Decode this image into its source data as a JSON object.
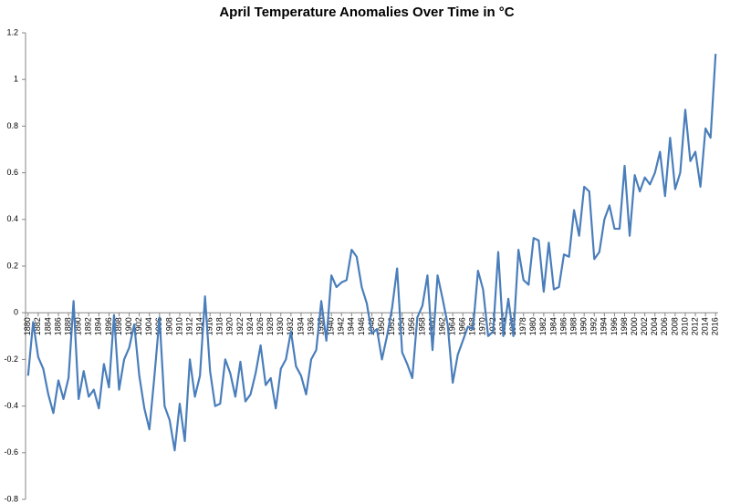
{
  "chart_data": {
    "type": "line",
    "title": "April Temperature Anomalies Over Time in °C",
    "x": [
      1880,
      1881,
      1882,
      1883,
      1884,
      1885,
      1886,
      1887,
      1888,
      1889,
      1890,
      1891,
      1892,
      1893,
      1894,
      1895,
      1896,
      1897,
      1898,
      1899,
      1900,
      1901,
      1902,
      1903,
      1904,
      1905,
      1906,
      1907,
      1908,
      1909,
      1910,
      1911,
      1912,
      1913,
      1914,
      1915,
      1916,
      1917,
      1918,
      1919,
      1920,
      1921,
      1922,
      1923,
      1924,
      1925,
      1926,
      1927,
      1928,
      1929,
      1930,
      1931,
      1932,
      1933,
      1934,
      1935,
      1936,
      1937,
      1938,
      1939,
      1940,
      1941,
      1942,
      1943,
      1944,
      1945,
      1946,
      1947,
      1948,
      1949,
      1950,
      1951,
      1952,
      1953,
      1954,
      1955,
      1956,
      1957,
      1958,
      1959,
      1960,
      1961,
      1962,
      1963,
      1964,
      1965,
      1966,
      1967,
      1968,
      1969,
      1970,
      1971,
      1972,
      1973,
      1974,
      1975,
      1976,
      1977,
      1978,
      1979,
      1980,
      1981,
      1982,
      1983,
      1984,
      1985,
      1986,
      1987,
      1988,
      1989,
      1990,
      1991,
      1992,
      1993,
      1994,
      1995,
      1996,
      1997,
      1998,
      1999,
      2000,
      2001,
      2002,
      2003,
      2004,
      2005,
      2006,
      2007,
      2008,
      2009,
      2010,
      2011,
      2012,
      2013,
      2014,
      2015,
      2016
    ],
    "values": [
      -0.27,
      -0.04,
      -0.19,
      -0.24,
      -0.35,
      -0.43,
      -0.29,
      -0.37,
      -0.28,
      0.05,
      -0.37,
      -0.25,
      -0.36,
      -0.33,
      -0.41,
      -0.22,
      -0.32,
      -0.01,
      -0.33,
      -0.2,
      -0.15,
      -0.05,
      -0.27,
      -0.41,
      -0.5,
      -0.27,
      -0.02,
      -0.4,
      -0.46,
      -0.59,
      -0.39,
      -0.55,
      -0.2,
      -0.36,
      -0.27,
      0.07,
      -0.25,
      -0.4,
      -0.39,
      -0.2,
      -0.26,
      -0.36,
      -0.21,
      -0.38,
      -0.35,
      -0.26,
      -0.14,
      -0.31,
      -0.28,
      -0.41,
      -0.24,
      -0.2,
      -0.08,
      -0.23,
      -0.27,
      -0.35,
      -0.2,
      -0.16,
      0.05,
      -0.12,
      0.16,
      0.11,
      0.13,
      0.14,
      0.27,
      0.24,
      0.11,
      0.04,
      -0.09,
      -0.07,
      -0.2,
      -0.1,
      0.02,
      0.19,
      -0.17,
      -0.22,
      -0.28,
      -0.02,
      0.03,
      0.16,
      -0.16,
      0.16,
      0.06,
      -0.05,
      -0.3,
      -0.18,
      -0.12,
      -0.06,
      -0.07,
      0.18,
      0.1,
      -0.1,
      -0.08,
      0.26,
      -0.1,
      0.06,
      -0.1,
      0.27,
      0.14,
      0.12,
      0.32,
      0.31,
      0.09,
      0.3,
      0.1,
      0.11,
      0.25,
      0.24,
      0.44,
      0.33,
      0.54,
      0.52,
      0.23,
      0.26,
      0.4,
      0.46,
      0.36,
      0.36,
      0.63,
      0.33,
      0.59,
      0.52,
      0.58,
      0.55,
      0.6,
      0.69,
      0.5,
      0.75,
      0.53,
      0.6,
      0.87,
      0.65,
      0.69,
      0.54,
      0.79,
      0.75,
      1.11
    ],
    "color": "#4a7ebb",
    "xlim": [
      1879.5,
      2016.5
    ],
    "xticks": [
      1880,
      1882,
      1884,
      1886,
      1888,
      1890,
      1892,
      1894,
      1896,
      1898,
      1900,
      1902,
      1904,
      1906,
      1908,
      1910,
      1912,
      1914,
      1916,
      1918,
      1920,
      1922,
      1924,
      1926,
      1928,
      1930,
      1932,
      1934,
      1936,
      1938,
      1940,
      1942,
      1944,
      1946,
      1948,
      1950,
      1952,
      1954,
      1956,
      1958,
      1960,
      1962,
      1964,
      1966,
      1968,
      1970,
      1972,
      1974,
      1976,
      1978,
      1980,
      1982,
      1984,
      1986,
      1988,
      1990,
      1992,
      1994,
      1996,
      1998,
      2000,
      2002,
      2004,
      2006,
      2008,
      2010,
      2012,
      2014,
      2016
    ],
    "ylim": [
      -0.8,
      1.2
    ],
    "yticks": [
      1.2,
      1,
      0.8,
      0.6,
      0.4,
      0.2,
      0,
      -0.2,
      -0.4,
      -0.6,
      -0.8
    ]
  }
}
